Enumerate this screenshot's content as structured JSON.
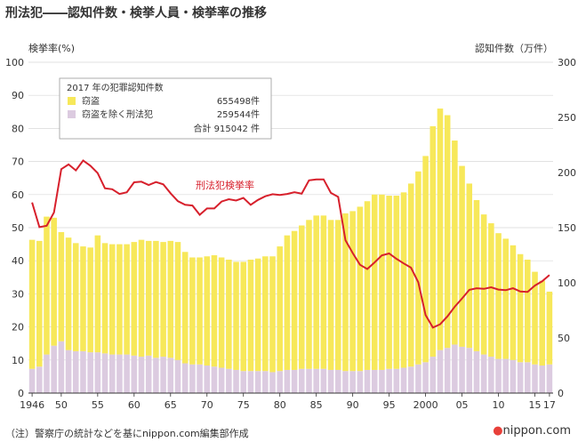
{
  "page": {
    "title": "刑法犯――認知件数・検挙人員・検挙率の推移",
    "note": "（注）警察庁の統計などを基にnippon.com編集部作成",
    "logo_dot": "●",
    "logo_text": "nippon.com"
  },
  "colors": {
    "theft": "#f7e85a",
    "other": "#dccbe0",
    "rate": "#d7202c",
    "grid": "#d9d9d9",
    "axis": "#333333"
  },
  "legend": {
    "year": "2017 年の犯罪認知件数",
    "items": [
      {
        "label": "窃盗",
        "value": "655498件"
      },
      {
        "label": "窃盗を除く刑法犯",
        "value": "259544件"
      }
    ],
    "total": "合計 915042 件"
  },
  "chart_data": {
    "type": "bar",
    "stacked": true,
    "title": "",
    "ylabel_left": "検挙率(%)",
    "ylabel_right": "認知件数（万件）",
    "ylim_left": [
      0,
      100
    ],
    "ylim_right": [
      0,
      300
    ],
    "left_ticks": [
      0,
      10,
      20,
      30,
      40,
      50,
      60,
      70,
      80,
      90,
      100
    ],
    "right_ticks": [
      0,
      50,
      100,
      150,
      200,
      250,
      300
    ],
    "x_tick_labels": [
      {
        "year": 1946,
        "label": "1946"
      },
      {
        "year": 1950,
        "label": "50"
      },
      {
        "year": 1955,
        "label": "55"
      },
      {
        "year": 1960,
        "label": "60"
      },
      {
        "year": 1965,
        "label": "65"
      },
      {
        "year": 1970,
        "label": "70"
      },
      {
        "year": 1975,
        "label": "75"
      },
      {
        "year": 1980,
        "label": "80"
      },
      {
        "year": 1985,
        "label": "85"
      },
      {
        "year": 1990,
        "label": "90"
      },
      {
        "year": 1995,
        "label": "95"
      },
      {
        "year": 2000,
        "label": "2000"
      },
      {
        "year": 2005,
        "label": "05"
      },
      {
        "year": 2010,
        "label": "10"
      },
      {
        "year": 2015,
        "label": "15"
      },
      {
        "year": 2017,
        "label": "17"
      }
    ],
    "grid": true,
    "legend_position": "top-left",
    "rate_label": "刑法犯検挙率",
    "years": [
      1946,
      1947,
      1948,
      1949,
      1950,
      1951,
      1952,
      1953,
      1954,
      1955,
      1956,
      1957,
      1958,
      1959,
      1960,
      1961,
      1962,
      1963,
      1964,
      1965,
      1966,
      1967,
      1968,
      1969,
      1970,
      1971,
      1972,
      1973,
      1974,
      1975,
      1976,
      1977,
      1978,
      1979,
      1980,
      1981,
      1982,
      1983,
      1984,
      1985,
      1986,
      1987,
      1988,
      1989,
      1990,
      1991,
      1992,
      1993,
      1994,
      1995,
      1996,
      1997,
      1998,
      1999,
      2000,
      2001,
      2002,
      2003,
      2004,
      2005,
      2006,
      2007,
      2008,
      2009,
      2010,
      2011,
      2012,
      2013,
      2014,
      2015,
      2016,
      2017
    ],
    "series": [
      {
        "name": "窃盗を除く刑法犯",
        "unit": "万件",
        "values": [
          22,
          24,
          35,
          43,
          47,
          39,
          38,
          38,
          37,
          37,
          36,
          35,
          35,
          35,
          34,
          33,
          34,
          32,
          33,
          32,
          30,
          27,
          26,
          26,
          25,
          24,
          23,
          22,
          21,
          20,
          20,
          20,
          20,
          19,
          20,
          21,
          21,
          22,
          22,
          22,
          22,
          21,
          21,
          20,
          20,
          20,
          21,
          21,
          21,
          22,
          22,
          23,
          24,
          26,
          28,
          33,
          39,
          41,
          44,
          42,
          41,
          38,
          35,
          33,
          31,
          31,
          30,
          28,
          28,
          26,
          25,
          26
        ]
      },
      {
        "name": "窃盗",
        "unit": "万件",
        "values": [
          117,
          114,
          125,
          116,
          99,
          102,
          98,
          95,
          95,
          106,
          100,
          100,
          100,
          100,
          103,
          106,
          104,
          106,
          104,
          106,
          107,
          101,
          97,
          97,
          99,
          101,
          100,
          99,
          98,
          99,
          101,
          102,
          104,
          105,
          113,
          122,
          126,
          130,
          135,
          139,
          139,
          136,
          136,
          143,
          145,
          149,
          153,
          159,
          159,
          157,
          157,
          159,
          166,
          175,
          187,
          209,
          219,
          211,
          185,
          164,
          149,
          137,
          127,
          121,
          114,
          109,
          104,
          98,
          93,
          84,
          77,
          66
        ]
      },
      {
        "name": "刑法犯検挙率",
        "unit": "%",
        "values": [
          57.6,
          50.2,
          50.6,
          54.6,
          67.7,
          69.1,
          67.3,
          70.3,
          68.7,
          66.5,
          61.9,
          61.6,
          60.2,
          60.7,
          63.7,
          63.9,
          62.9,
          63.8,
          63.1,
          60.4,
          58.0,
          56.9,
          56.7,
          53.9,
          55.8,
          55.8,
          57.9,
          58.6,
          58.2,
          59.0,
          56.9,
          58.4,
          59.5,
          60.1,
          59.9,
          60.2,
          60.7,
          60.3,
          64.3,
          64.6,
          64.6,
          60.5,
          59.3,
          46.2,
          42.3,
          38.8,
          37.5,
          39.5,
          41.6,
          42.2,
          40.6,
          39.2,
          37.9,
          33.5,
          23.6,
          19.8,
          20.8,
          23.2,
          26.1,
          28.6,
          31.2,
          31.7,
          31.5,
          32.0,
          31.3,
          31.1,
          31.7,
          30.7,
          30.6,
          32.5,
          33.8,
          35.7
        ]
      }
    ],
    "annotations": [
      "刑法犯検挙率"
    ]
  }
}
